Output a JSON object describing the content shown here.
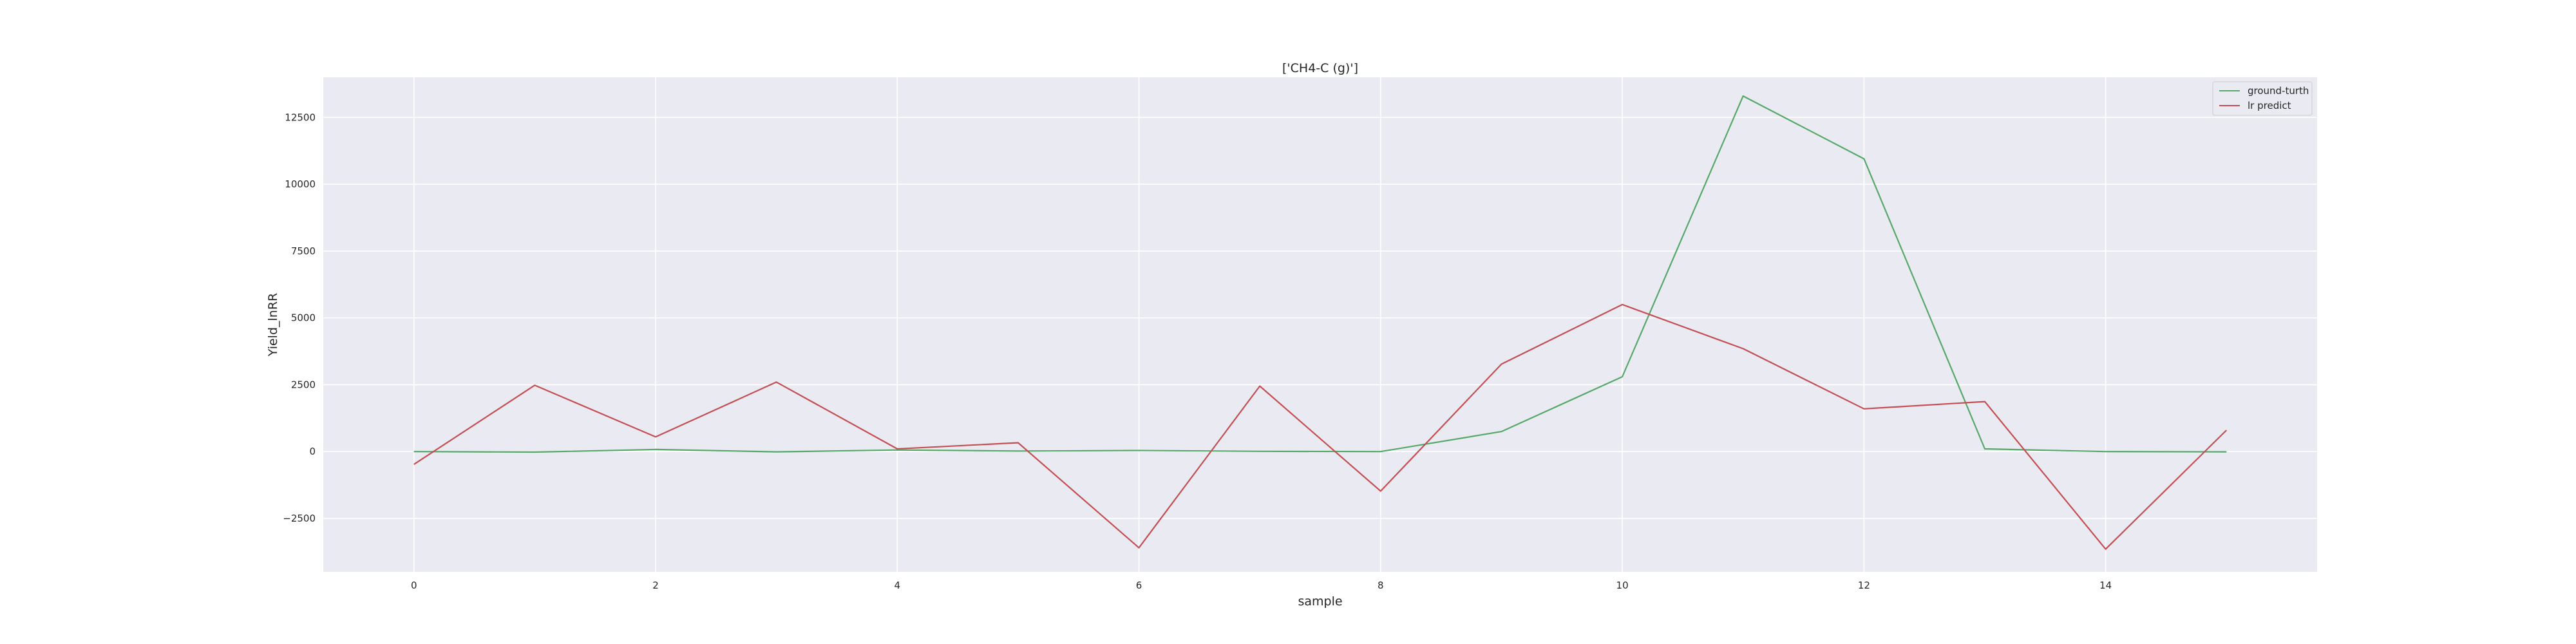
{
  "chart_data": {
    "type": "line",
    "title": "['CH4-C (g)']",
    "xlabel": "sample",
    "ylabel": "Yield_lnRR",
    "x": [
      0,
      1,
      2,
      3,
      4,
      5,
      6,
      7,
      8,
      9,
      10,
      11,
      12,
      13,
      14,
      15
    ],
    "xticks": [
      0,
      2,
      4,
      6,
      8,
      10,
      12,
      14
    ],
    "yticks": [
      -2500,
      0,
      2500,
      5000,
      7500,
      10000,
      12500
    ],
    "xlim": [
      -0.75,
      15.75
    ],
    "ylim": [
      -4500,
      14000
    ],
    "grid": true,
    "legend_position": "top-right",
    "series": [
      {
        "name": "ground-turth",
        "color": "#55a868",
        "values": [
          0,
          -20,
          80,
          -10,
          60,
          20,
          40,
          10,
          0,
          750,
          2800,
          13300,
          10950,
          100,
          0,
          -10
        ]
      },
      {
        "name": "lr predict",
        "color": "#c44e52",
        "values": [
          -480,
          2480,
          550,
          2600,
          100,
          330,
          -3600,
          2450,
          -1480,
          3270,
          5500,
          3850,
          1600,
          1870,
          -3650,
          800
        ]
      }
    ]
  }
}
